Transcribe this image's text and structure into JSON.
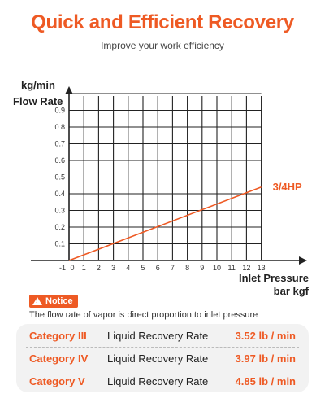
{
  "header": {
    "title": "Quick and Efficient Recovery",
    "subtitle": "Improve your work efficiency"
  },
  "chart_data": {
    "type": "line",
    "ylabel_unit": "kg/min",
    "ylabel": "Flow Rate",
    "xlabel": "Inlet Pressure",
    "xlabel_unit": "bar kgf",
    "x_ticks": [
      "-1",
      "0",
      "1",
      "2",
      "3",
      "4",
      "5",
      "6",
      "7",
      "8",
      "9",
      "10",
      "11",
      "12",
      "13"
    ],
    "y_ticks": [
      "0.1",
      "0.2",
      "0.3",
      "0.4",
      "0.5",
      "0.6",
      "0.7",
      "0.8",
      "0.9"
    ],
    "xlim": [
      -1,
      13
    ],
    "ylim": [
      0,
      1.0
    ],
    "grid": true,
    "series": [
      {
        "name": "3/4HP",
        "color": "#ee5a24",
        "x": [
          0,
          13
        ],
        "y": [
          0,
          0.44
        ]
      }
    ]
  },
  "notice": {
    "badge": "Notice",
    "text": "The flow rate of vapor is direct proportion to inlet pressure"
  },
  "categories": [
    {
      "category": "Category III",
      "label": "Liquid Recovery Rate",
      "value": "3.52 lb / min"
    },
    {
      "category": "Category IV",
      "label": "Liquid Recovery Rate",
      "value": "3.97 lb / min"
    },
    {
      "category": "Category V",
      "label": "Liquid Recovery Rate",
      "value": "4.85 lb / min"
    }
  ],
  "colors": {
    "accent": "#ee5a24",
    "panel": "#f2f2f2"
  }
}
